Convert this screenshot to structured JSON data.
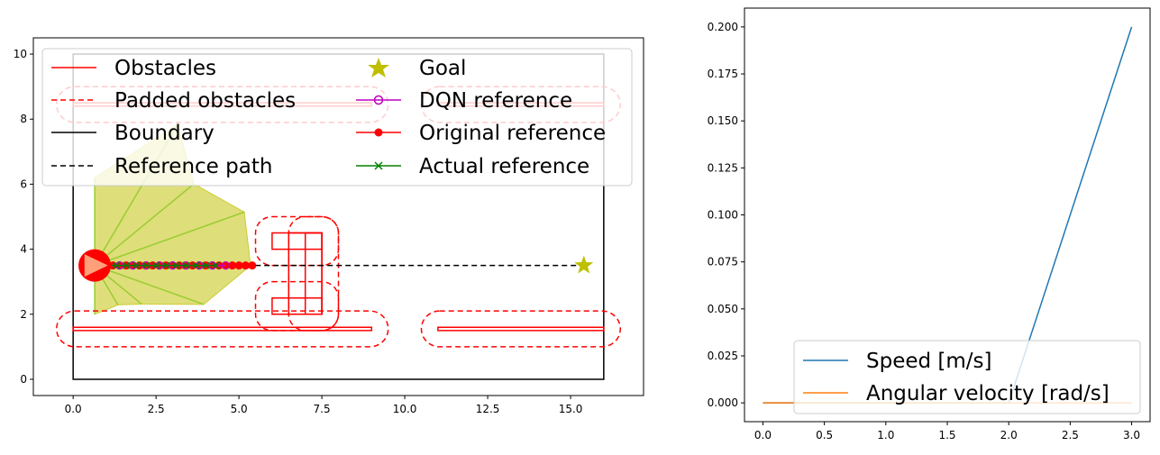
{
  "colors": {
    "obstacle": "#ff0000",
    "boundary": "#000000",
    "goal": "#bfbf00",
    "dqn": "#bf00bf",
    "actual": "#008000",
    "sensor_fill": "#cccc33",
    "ray": "#9acd32",
    "speed": "#1f77b4",
    "angular": "#ff7f0e"
  },
  "chart_data": [
    {
      "type": "scatter",
      "xlim": [
        -1.2,
        17.2
      ],
      "ylim": [
        -0.5,
        10.5
      ],
      "xticks": [
        0.0,
        2.5,
        5.0,
        7.5,
        10.0,
        12.5,
        15.0
      ],
      "xtick_labels": [
        "0.0",
        "2.5",
        "5.0",
        "7.5",
        "10.0",
        "12.5",
        "15.0"
      ],
      "yticks": [
        0,
        2,
        4,
        6,
        8,
        10
      ],
      "ytick_labels": [
        "0",
        "2",
        "4",
        "6",
        "8",
        "10"
      ],
      "legend": {
        "position": "top",
        "columns": 2,
        "entries": [
          "Obstacles",
          "Padded obstacles",
          "Boundary",
          "Reference path",
          "Goal",
          "DQN reference",
          "Original reference",
          "Actual reference"
        ]
      },
      "boundary": [
        [
          0,
          0
        ],
        [
          16,
          0
        ],
        [
          16,
          10
        ],
        [
          0,
          10
        ]
      ],
      "obstacles": [
        [
          [
            0,
            1.5
          ],
          [
            9,
            1.5
          ],
          [
            9,
            1.6
          ],
          [
            0,
            1.6
          ]
        ],
        [
          [
            11,
            1.5
          ],
          [
            16,
            1.5
          ],
          [
            16,
            1.6
          ],
          [
            11,
            1.6
          ]
        ],
        [
          [
            0,
            8.4
          ],
          [
            9,
            8.4
          ],
          [
            9,
            8.5
          ],
          [
            0,
            8.5
          ]
        ],
        [
          [
            11,
            8.4
          ],
          [
            16,
            8.4
          ],
          [
            16,
            8.5
          ],
          [
            11,
            8.5
          ]
        ],
        [
          [
            6.5,
            2.0
          ],
          [
            7.5,
            2.0
          ],
          [
            7.5,
            4.5
          ],
          [
            6.5,
            4.5
          ]
        ],
        [
          [
            6.0,
            2.0
          ],
          [
            7.5,
            2.0
          ],
          [
            7.5,
            2.5
          ],
          [
            6.0,
            2.5
          ]
        ],
        [
          [
            6.0,
            4.0
          ],
          [
            7.5,
            4.0
          ],
          [
            7.5,
            4.5
          ],
          [
            6.0,
            4.5
          ]
        ],
        [
          [
            7.0,
            2.0
          ],
          [
            7.5,
            2.0
          ],
          [
            7.5,
            4.5
          ],
          [
            7.0,
            4.5
          ]
        ]
      ],
      "padded_obstacles": [
        {
          "x0": -0.5,
          "y0": 1.0,
          "x1": 9.5,
          "y1": 2.1,
          "r": 0.55
        },
        {
          "x0": 10.5,
          "y0": 1.0,
          "x1": 16.5,
          "y1": 2.1,
          "r": 0.55
        },
        {
          "x0": -0.5,
          "y0": 7.9,
          "x1": 9.5,
          "y1": 9.0,
          "r": 0.55
        },
        {
          "x0": 10.5,
          "y0": 7.9,
          "x1": 16.5,
          "y1": 9.0,
          "r": 0.55
        },
        {
          "x0": 5.5,
          "y0": 1.5,
          "x1": 8.0,
          "y1": 3.0,
          "r": 0.5
        },
        {
          "x0": 5.5,
          "y0": 3.5,
          "x1": 8.0,
          "y1": 5.0,
          "r": 0.5
        },
        {
          "x0": 6.5,
          "y0": 1.5,
          "x1": 8.0,
          "y1": 5.0,
          "r": 0.5
        }
      ],
      "reference_path": [
        [
          0.6,
          3.5
        ],
        [
          15.4,
          3.5
        ]
      ],
      "goal": [
        15.4,
        3.5
      ],
      "robot": {
        "x": 0.65,
        "y": 3.5,
        "r": 0.5,
        "heading_deg": 0
      },
      "sensor_rays": [
        {
          "angle_deg": -90,
          "length": 1.5
        },
        {
          "angle_deg": -60,
          "length": 1.4
        },
        {
          "angle_deg": -40,
          "length": 1.85
        },
        {
          "angle_deg": -20,
          "length": 3.5
        },
        {
          "angle_deg": 0,
          "length": 4.7
        },
        {
          "angle_deg": 20,
          "length": 4.8
        },
        {
          "angle_deg": 40,
          "length": 3.9
        },
        {
          "angle_deg": 60,
          "length": 5.0
        },
        {
          "angle_deg": 90,
          "length": 2.7
        }
      ],
      "original_reference": {
        "x": [
          1.0,
          1.2,
          1.4,
          1.6,
          1.8,
          2.0,
          2.2,
          2.4,
          2.6,
          2.8,
          3.0,
          3.2,
          3.4,
          3.6,
          3.8,
          4.0,
          4.2,
          4.4,
          4.6,
          4.8,
          5.0,
          5.2,
          5.4
        ],
        "y": [
          3.5,
          3.5,
          3.5,
          3.5,
          3.5,
          3.5,
          3.5,
          3.5,
          3.5,
          3.5,
          3.5,
          3.5,
          3.5,
          3.5,
          3.5,
          3.5,
          3.5,
          3.5,
          3.5,
          3.5,
          3.5,
          3.5,
          3.5
        ]
      },
      "dqn_reference": {
        "x": [
          1.0,
          1.4,
          1.8,
          2.2,
          2.6,
          3.0,
          3.4,
          3.8,
          4.2,
          4.6
        ],
        "y": [
          3.5,
          3.5,
          3.5,
          3.5,
          3.5,
          3.5,
          3.5,
          3.5,
          3.5,
          3.5
        ]
      },
      "actual_reference": {
        "x": [
          1.0,
          1.3,
          1.6,
          1.9,
          2.2,
          2.5,
          2.8,
          3.1,
          3.4,
          3.7,
          4.0,
          4.3
        ],
        "y": [
          3.5,
          3.5,
          3.5,
          3.5,
          3.5,
          3.5,
          3.5,
          3.5,
          3.5,
          3.5,
          3.5,
          3.5
        ]
      }
    },
    {
      "type": "line",
      "xlim": [
        -0.15,
        3.15
      ],
      "ylim": [
        -0.01,
        0.21
      ],
      "xticks": [
        0.0,
        0.5,
        1.0,
        1.5,
        2.0,
        2.5,
        3.0
      ],
      "xtick_labels": [
        "0.0",
        "0.5",
        "1.0",
        "1.5",
        "2.0",
        "2.5",
        "3.0"
      ],
      "yticks": [
        0.0,
        0.025,
        0.05,
        0.075,
        0.1,
        0.125,
        0.15,
        0.175,
        0.2
      ],
      "ytick_labels": [
        "0.000",
        "0.025",
        "0.050",
        "0.075",
        "0.100",
        "0.125",
        "0.150",
        "0.175",
        "0.200"
      ],
      "legend": {
        "position": "lower right",
        "entries": [
          "Speed [m/s]",
          "Angular velocity [rad/s]"
        ]
      },
      "series": [
        {
          "name": "Speed [m/s]",
          "x": [
            0.0,
            2.0,
            3.0
          ],
          "values": [
            0.0,
            0.0,
            0.2
          ]
        },
        {
          "name": "Angular velocity [rad/s]",
          "x": [
            0.0,
            1.0,
            2.0,
            3.0
          ],
          "values": [
            0.0,
            0.0,
            0.0,
            0.0
          ]
        }
      ]
    }
  ]
}
